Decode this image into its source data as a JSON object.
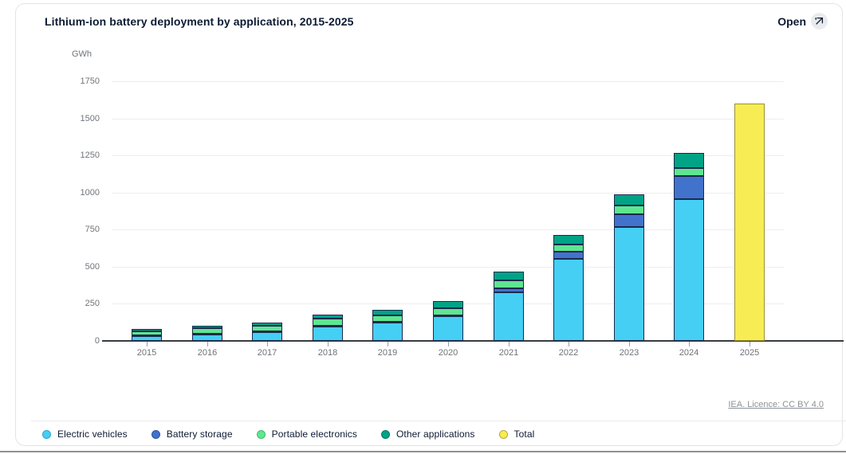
{
  "card": {
    "title": "Lithium-ion battery deployment by application, 2015-2025",
    "open_label": "Open",
    "attribution": "IEA. Licence: CC BY 4.0"
  },
  "chart_data": {
    "type": "bar",
    "stacked": true,
    "title": "Lithium-ion battery deployment by application, 2015-2025",
    "unit_label": "GWh",
    "xlabel": "",
    "ylabel": "GWh",
    "ylim": [
      0,
      1750
    ],
    "yticks": [
      0,
      250,
      500,
      750,
      1000,
      1250,
      1500,
      1750
    ],
    "grid": true,
    "legend_position": "bottom",
    "categories": [
      "2015",
      "2016",
      "2017",
      "2018",
      "2019",
      "2020",
      "2021",
      "2022",
      "2023",
      "2024",
      "2025"
    ],
    "series": [
      {
        "name": "Electric vehicles",
        "color": "#45cff5",
        "stroke": "#1b2a4c",
        "edge": "#2ba3cc",
        "values": [
          34,
          46,
          60,
          100,
          125,
          164,
          328,
          553,
          765,
          955,
          null
        ]
      },
      {
        "name": "Battery storage",
        "color": "#4173cd",
        "stroke": "#1b2a4c",
        "edge": "#2c55a0",
        "values": [
          1,
          2,
          2,
          4,
          5,
          8,
          24,
          48,
          90,
          155,
          null
        ]
      },
      {
        "name": "Portable electronics",
        "color": "#5fe690",
        "stroke": "#1b2a4c",
        "edge": "#3dbd6e",
        "values": [
          27,
          36,
          41,
          46,
          44,
          46,
          56,
          48,
          59,
          57,
          null
        ]
      },
      {
        "name": "Other applications",
        "color": "#00a386",
        "stroke": "#1b2a4c",
        "edge": "#007a64",
        "values": [
          18,
          19,
          20,
          27,
          36,
          50,
          59,
          63,
          76,
          100,
          null
        ]
      },
      {
        "name": "Total",
        "color": "#f7ec53",
        "stroke": "#9a9132",
        "edge": "#b5a93a",
        "values": [
          null,
          null,
          null,
          null,
          null,
          null,
          null,
          null,
          null,
          null,
          1600
        ]
      }
    ]
  }
}
